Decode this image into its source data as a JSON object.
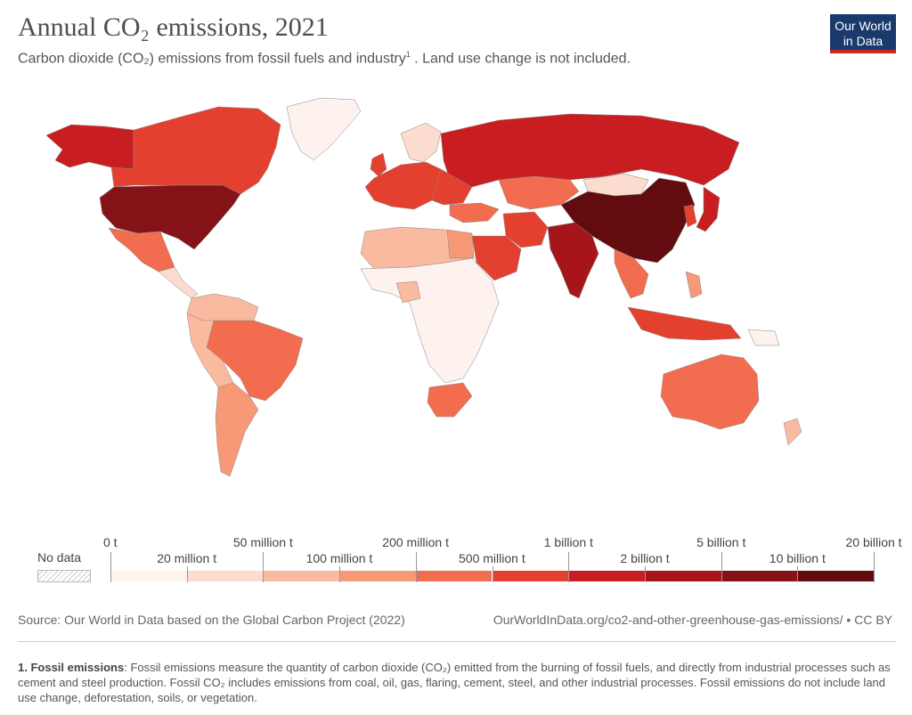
{
  "title": "Annual CO₂ emissions, 2021",
  "subtitle": {
    "text": "Carbon dioxide (CO₂) emissions from fossil fuels and industry",
    "footnote_mark": "1",
    "suffix": " . Land use change is not included."
  },
  "logo": {
    "line1": "Our World",
    "line2": "in Data"
  },
  "legend": {
    "no_data": "No data",
    "top_labels": [
      "0 t",
      "50 million t",
      "200 million t",
      "1 billion t",
      "5 billion t",
      "20 billion t"
    ],
    "bottom_labels": [
      "20 million t",
      "100 million t",
      "500 million t",
      "2 billion t",
      "10 billion t"
    ],
    "colors": [
      "#fdf2ee",
      "#fbdccf",
      "#f9baa0",
      "#f79876",
      "#f26d4f",
      "#e44030",
      "#c81e22",
      "#a5151a",
      "#841216",
      "#620c10"
    ]
  },
  "source": "Source: Our World in Data based on the Global Carbon Project (2022)",
  "url": "OurWorldInData.org/co2-and-other-greenhouse-gas-emissions/ • CC BY",
  "note": {
    "label": "1. Fossil emissions",
    "text": ": Fossil emissions measure the quantity of carbon dioxide (CO₂) emitted from the burning of fossil fuels, and directly from industrial processes such as cement and steel production. Fossil CO₂ includes emissions from coal, oil, gas, flaring, cement, steel, and other industrial processes. Fossil emissions do not include land use change, deforestation, soils, or vegetation."
  }
}
